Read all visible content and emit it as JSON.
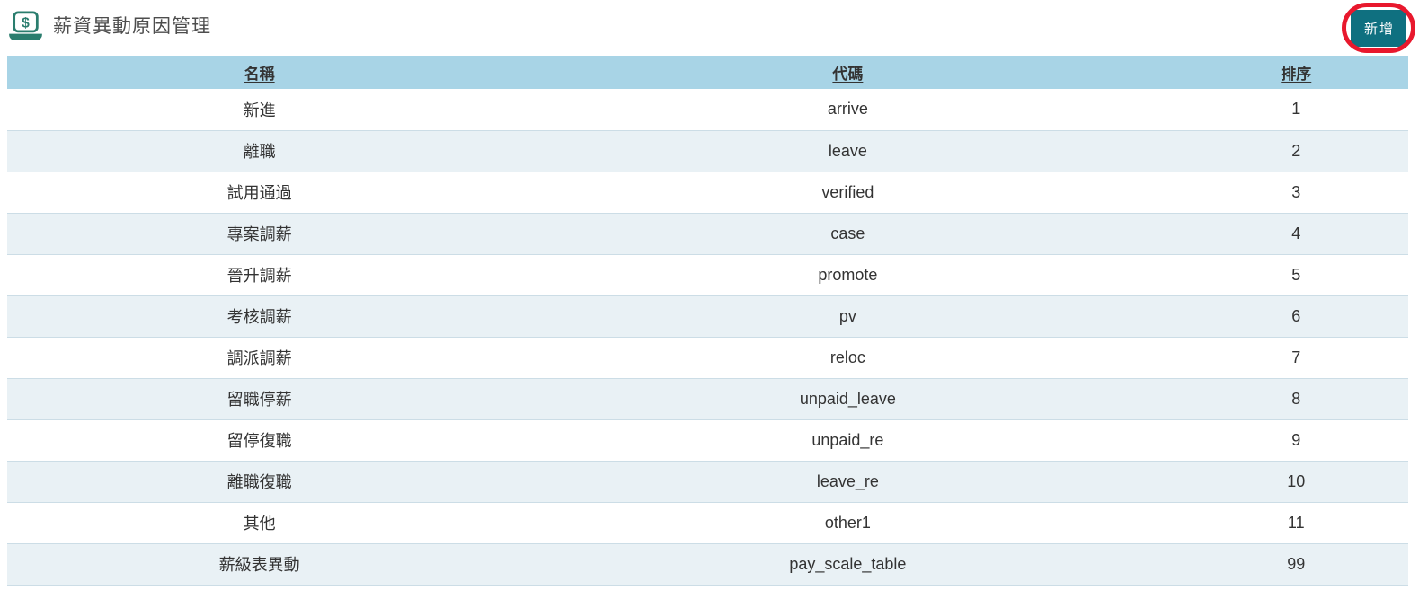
{
  "page": {
    "title": "薪資異動原因管理",
    "icon_glyph": "$",
    "add_button_label": "新增"
  },
  "colors": {
    "accent_teal": "#0f7080",
    "icon_teal": "#2a7d6e",
    "annotation_red": "#e8182d",
    "table_header_bg": "#a8d4e6",
    "row_stripe_bg": "#e9f1f5",
    "row_border": "#ccdde6",
    "text": "#333333"
  },
  "table": {
    "columns": [
      {
        "key": "name",
        "label": "名稱"
      },
      {
        "key": "code",
        "label": "代碼"
      },
      {
        "key": "sort",
        "label": "排序"
      }
    ],
    "rows": [
      {
        "name": "新進",
        "code": "arrive",
        "sort": "1"
      },
      {
        "name": "離職",
        "code": "leave",
        "sort": "2"
      },
      {
        "name": "試用通過",
        "code": "verified",
        "sort": "3"
      },
      {
        "name": "專案調薪",
        "code": "case",
        "sort": "4"
      },
      {
        "name": "晉升調薪",
        "code": "promote",
        "sort": "5"
      },
      {
        "name": "考核調薪",
        "code": "pv",
        "sort": "6"
      },
      {
        "name": "調派調薪",
        "code": "reloc",
        "sort": "7"
      },
      {
        "name": "留職停薪",
        "code": "unpaid_leave",
        "sort": "8"
      },
      {
        "name": "留停復職",
        "code": "unpaid_re",
        "sort": "9"
      },
      {
        "name": "離職復職",
        "code": "leave_re",
        "sort": "10"
      },
      {
        "name": "其他",
        "code": "other1",
        "sort": "11"
      },
      {
        "name": "薪級表異動",
        "code": "pay_scale_table",
        "sort": "99"
      }
    ]
  }
}
